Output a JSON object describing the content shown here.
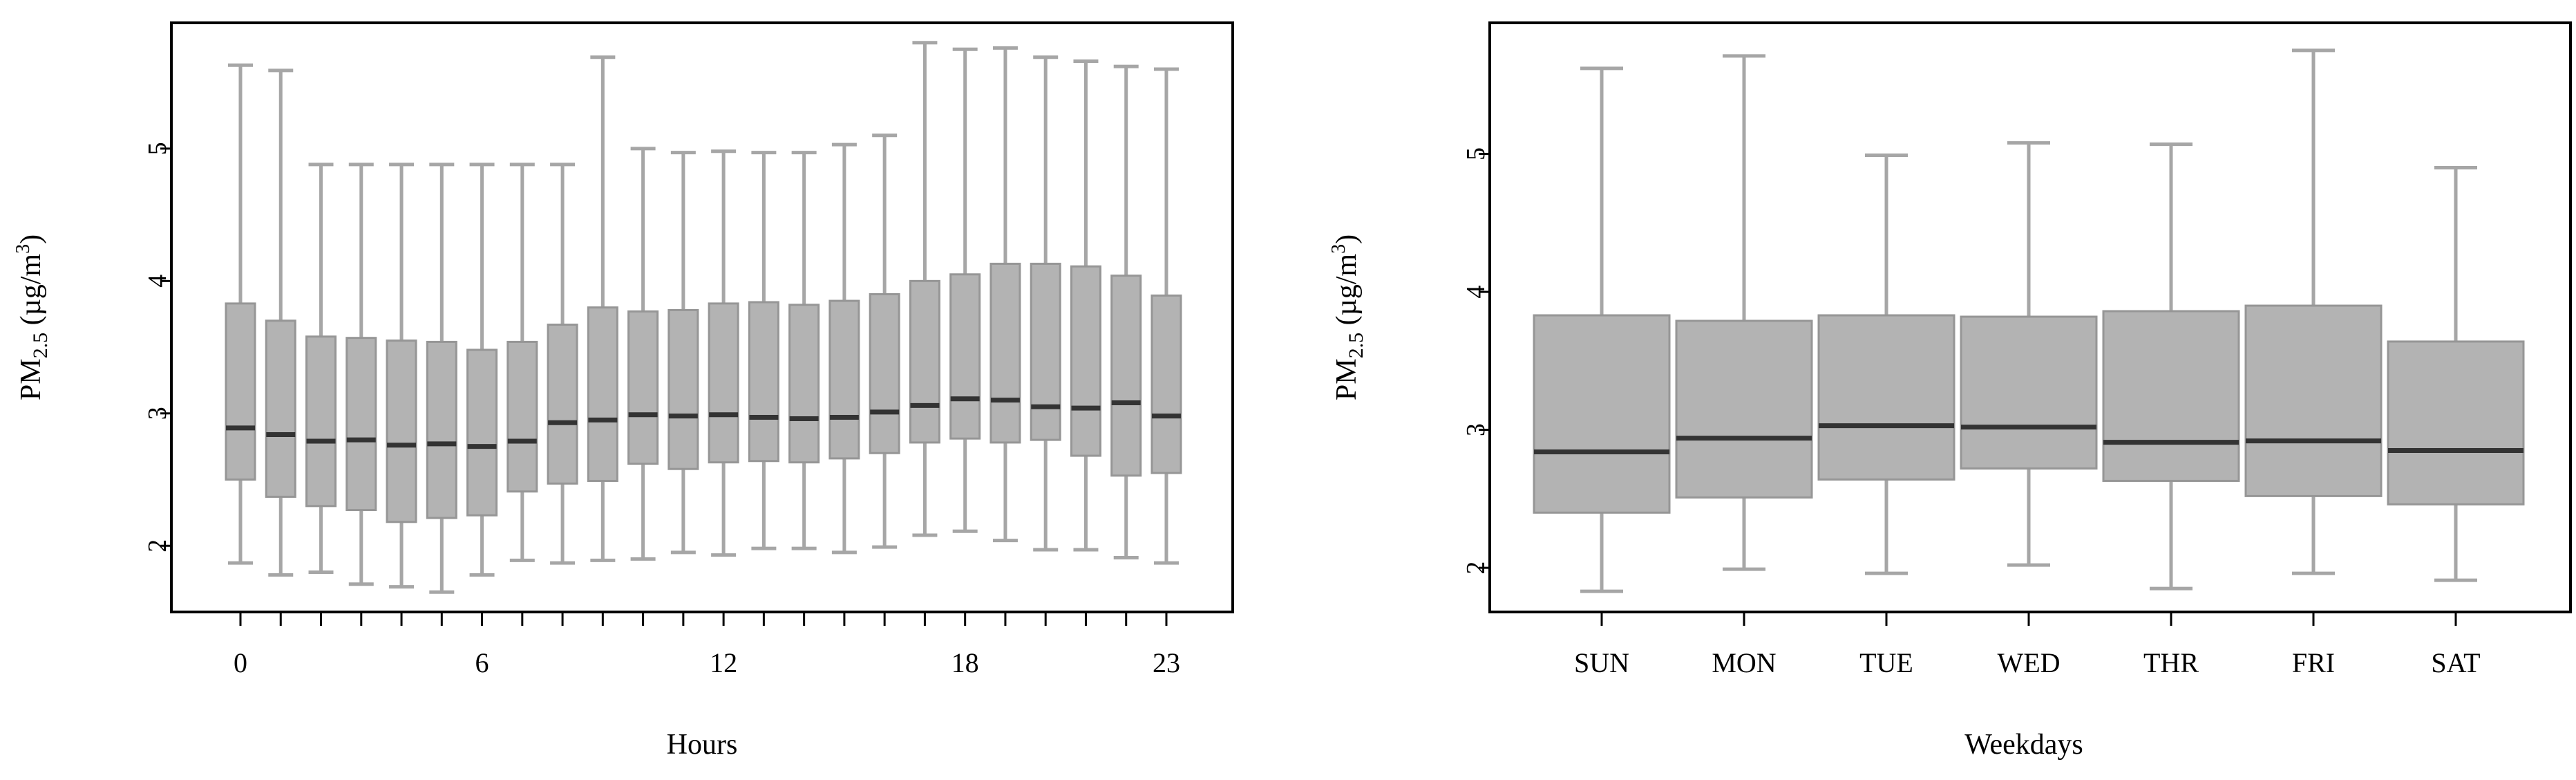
{
  "chart_data": [
    {
      "type": "boxplot",
      "xlabel": "Hours",
      "ylabel_main": "PM",
      "ylabel_sub": "2.5",
      "ylabel_units_open": " (µg/m",
      "ylabel_units_sup": "3",
      "ylabel_units_close": ")",
      "ylim": [
        1.5,
        5.95
      ],
      "yticks": [
        2,
        3,
        4,
        5
      ],
      "ytick_labels": [
        "2",
        "3",
        "4",
        "5"
      ],
      "categories": [
        "0",
        "1",
        "2",
        "3",
        "4",
        "5",
        "6",
        "7",
        "8",
        "9",
        "10",
        "11",
        "12",
        "13",
        "14",
        "15",
        "16",
        "17",
        "18",
        "19",
        "20",
        "21",
        "22",
        "23"
      ],
      "xtick_labels": [
        "0",
        "6",
        "12",
        "18",
        "23"
      ],
      "xtick_label_indices": [
        0,
        6,
        12,
        18,
        23
      ],
      "grid": false,
      "colors": {
        "box_fill": "#b3b3b3",
        "box_stroke": "#969696",
        "whisker": "#a6a6a6",
        "median": "#333333",
        "axis": "#000000"
      },
      "boxes": [
        {
          "whislo": 1.87,
          "q1": 2.5,
          "med": 2.89,
          "q3": 3.83,
          "whishi": 5.63
        },
        {
          "whislo": 1.78,
          "q1": 2.37,
          "med": 2.84,
          "q3": 3.7,
          "whishi": 5.59
        },
        {
          "whislo": 1.8,
          "q1": 2.3,
          "med": 2.79,
          "q3": 3.58,
          "whishi": 4.88
        },
        {
          "whislo": 1.71,
          "q1": 2.27,
          "med": 2.8,
          "q3": 3.57,
          "whishi": 4.88
        },
        {
          "whislo": 1.69,
          "q1": 2.18,
          "med": 2.76,
          "q3": 3.55,
          "whishi": 4.88
        },
        {
          "whislo": 1.65,
          "q1": 2.21,
          "med": 2.77,
          "q3": 3.54,
          "whishi": 4.88
        },
        {
          "whislo": 1.78,
          "q1": 2.23,
          "med": 2.75,
          "q3": 3.48,
          "whishi": 4.88
        },
        {
          "whislo": 1.89,
          "q1": 2.41,
          "med": 2.79,
          "q3": 3.54,
          "whishi": 4.88
        },
        {
          "whislo": 1.87,
          "q1": 2.47,
          "med": 2.93,
          "q3": 3.67,
          "whishi": 4.88
        },
        {
          "whislo": 1.89,
          "q1": 2.49,
          "med": 2.95,
          "q3": 3.8,
          "whishi": 5.69
        },
        {
          "whislo": 1.9,
          "q1": 2.62,
          "med": 2.99,
          "q3": 3.77,
          "whishi": 5.0
        },
        {
          "whislo": 1.95,
          "q1": 2.58,
          "med": 2.98,
          "q3": 3.78,
          "whishi": 4.97
        },
        {
          "whislo": 1.93,
          "q1": 2.63,
          "med": 2.99,
          "q3": 3.83,
          "whishi": 4.98
        },
        {
          "whislo": 1.98,
          "q1": 2.64,
          "med": 2.97,
          "q3": 3.84,
          "whishi": 4.97
        },
        {
          "whislo": 1.98,
          "q1": 2.63,
          "med": 2.96,
          "q3": 3.82,
          "whishi": 4.97
        },
        {
          "whislo": 1.95,
          "q1": 2.66,
          "med": 2.97,
          "q3": 3.85,
          "whishi": 5.03
        },
        {
          "whislo": 1.99,
          "q1": 2.7,
          "med": 3.01,
          "q3": 3.9,
          "whishi": 5.1
        },
        {
          "whislo": 2.08,
          "q1": 2.78,
          "med": 3.06,
          "q3": 4.0,
          "whishi": 5.8
        },
        {
          "whislo": 2.11,
          "q1": 2.81,
          "med": 3.11,
          "q3": 4.05,
          "whishi": 5.75
        },
        {
          "whislo": 2.04,
          "q1": 2.78,
          "med": 3.1,
          "q3": 4.13,
          "whishi": 5.76
        },
        {
          "whislo": 1.97,
          "q1": 2.8,
          "med": 3.05,
          "q3": 4.13,
          "whishi": 5.69
        },
        {
          "whislo": 1.97,
          "q1": 2.68,
          "med": 3.04,
          "q3": 4.11,
          "whishi": 5.66
        },
        {
          "whislo": 1.91,
          "q1": 2.53,
          "med": 3.08,
          "q3": 4.04,
          "whishi": 5.62
        },
        {
          "whislo": 1.87,
          "q1": 2.55,
          "med": 2.98,
          "q3": 3.89,
          "whishi": 5.6
        }
      ]
    },
    {
      "type": "boxplot",
      "xlabel": "Weekdays",
      "ylabel_main": "PM",
      "ylabel_sub": "2.5",
      "ylabel_units_open": " (µg/m",
      "ylabel_units_sup": "3",
      "ylabel_units_close": ")",
      "ylim": [
        1.68,
        5.95
      ],
      "yticks": [
        2,
        3,
        4,
        5
      ],
      "ytick_labels": [
        "2",
        "3",
        "4",
        "5"
      ],
      "categories": [
        "SUN",
        "MON",
        "TUE",
        "WED",
        "THR",
        "FRI",
        "SAT"
      ],
      "xtick_labels": [
        "SUN",
        "MON",
        "TUE",
        "WED",
        "THR",
        "FRI",
        "SAT"
      ],
      "xtick_label_indices": [
        0,
        1,
        2,
        3,
        4,
        5,
        6
      ],
      "grid": false,
      "colors": {
        "box_fill": "#b3b3b3",
        "box_stroke": "#969696",
        "whisker": "#a6a6a6",
        "median": "#333333",
        "axis": "#000000"
      },
      "boxes": [
        {
          "whislo": 1.83,
          "q1": 2.4,
          "med": 2.84,
          "q3": 3.83,
          "whishi": 5.62
        },
        {
          "whislo": 1.99,
          "q1": 2.51,
          "med": 2.94,
          "q3": 3.79,
          "whishi": 5.71
        },
        {
          "whislo": 1.96,
          "q1": 2.64,
          "med": 3.03,
          "q3": 3.83,
          "whishi": 4.99
        },
        {
          "whislo": 2.02,
          "q1": 2.72,
          "med": 3.02,
          "q3": 3.82,
          "whishi": 5.08
        },
        {
          "whislo": 1.85,
          "q1": 2.63,
          "med": 2.91,
          "q3": 3.86,
          "whishi": 5.07
        },
        {
          "whislo": 1.96,
          "q1": 2.52,
          "med": 2.92,
          "q3": 3.9,
          "whishi": 5.75
        },
        {
          "whislo": 1.91,
          "q1": 2.46,
          "med": 2.85,
          "q3": 3.64,
          "whishi": 4.9
        }
      ]
    }
  ]
}
